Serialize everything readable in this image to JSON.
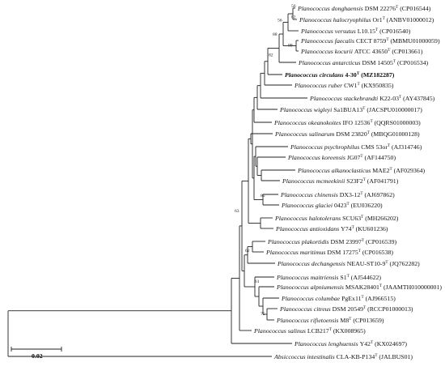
{
  "tree": {
    "leaves": [
      {
        "species": "Planococcus donghaensis",
        "strain": "DSM 22276",
        "superscript": "T",
        "accession": "(CP016544)"
      },
      {
        "species": "Planococcus halocryophilus",
        "strain": "Or1",
        "superscript": "T",
        "accession": "(ANBV01000012)"
      },
      {
        "species": "Planococcus versutus",
        "strain": "L10.15",
        "superscript": "T",
        "accession": "(CP016540)"
      },
      {
        "species": "Planococcus faecalis",
        "strain": "CECT 8759",
        "superscript": "T",
        "accession": "(MBMU01000059)"
      },
      {
        "species": "Planococcus kocurii",
        "strain": "ATCC 43650",
        "superscript": "T",
        "accession": "(CP013661)"
      },
      {
        "species": "Planococcus antarcticus",
        "strain": "DSM 14505",
        "superscript": "T",
        "accession": "(CP016534)"
      },
      {
        "species": "Planococcus circulans",
        "strain": "4-30",
        "superscript": "T",
        "accession": "(MZ182287)",
        "bold": true
      },
      {
        "species": "Planococcus ruber",
        "strain": "CW1",
        "superscript": "T",
        "accession": "(KX950835)"
      },
      {
        "species": "Planococcus stackebrandti",
        "strain": "K22-03",
        "superscript": "T",
        "accession": "(AY437845)"
      },
      {
        "species": "Planococcus wigleyi",
        "strain": "Sa1BUA13",
        "superscript": "T",
        "accession": "(JACSPU010000017)"
      },
      {
        "species": "Planococcus okeanokoites",
        "strain": "IFO 12536",
        "superscript": "T",
        "accession": "(QQRS01000003)"
      },
      {
        "species": "Planococcus salinarum",
        "strain": "DSM 23820",
        "superscript": "T",
        "accession": "(MBQG01000128)"
      },
      {
        "species": "Planococcus psychrophilus",
        "strain": "CMS 53or",
        "superscript": "T",
        "accession": "(AJ314746)"
      },
      {
        "species": "Planococcus koreensis",
        "strain": "JG07",
        "superscript": "T",
        "accession": "(AF144750)"
      },
      {
        "species": "Planococcus alkanoclasticus",
        "strain": "MAE2",
        "superscript": "T",
        "accession": "(AF029364)"
      },
      {
        "species": "Planococcus mcmeekinii",
        "strain": "S23F2",
        "superscript": "T",
        "accession": "(AF041791)"
      },
      {
        "species": "Planococcus chinensis",
        "strain": "DX3-12",
        "superscript": "T",
        "accession": "(AJ697862)"
      },
      {
        "species": "Planococcus glaciei",
        "strain": "0423",
        "superscript": "T",
        "accession": "(EU036220)"
      },
      {
        "species": "Planococcus halotolerans",
        "strain": "SCU63",
        "superscript": "T",
        "accession": "(MH266202)"
      },
      {
        "species": "Planococcus antioxidans",
        "strain": "Y74",
        "superscript": "T",
        "accession": "(KU601236)"
      },
      {
        "species": "Planococcus plakortidis",
        "strain": "DSM 23997",
        "superscript": "T",
        "accession": "(CP016539)"
      },
      {
        "species": "Planococcus maritimus",
        "strain": "DSM 17275",
        "superscript": "T",
        "accession": "(CP016538)"
      },
      {
        "species": "Planococcus dechangensis",
        "strain": "NEAU-ST10-9",
        "superscript": "T",
        "accession": "(JQ762282)"
      },
      {
        "species": "Planococcus maitriensis",
        "strain": "S1",
        "superscript": "T",
        "accession": "(AJ544622)"
      },
      {
        "species": "Planococcus alpniumensis",
        "strain": "MSAK28401",
        "superscript": "T",
        "accession": "(JAAMTH010000001)"
      },
      {
        "species": "Planococcus columbae",
        "strain": "PgEx11",
        "superscript": "T",
        "accession": "(AJ966515)"
      },
      {
        "species": "Planococcus citreus",
        "strain": "DSM 20549",
        "superscript": "T",
        "accession": "(RCCP01000013)"
      },
      {
        "species": "Planococcus rifietoensis",
        "strain": "M8",
        "superscript": "T",
        "accession": "(CP013659)"
      },
      {
        "species": "Planococcus salinus",
        "strain": "LCB217",
        "superscript": "T",
        "accession": "(KX008965)"
      },
      {
        "species": "Planococcus lenghuensis",
        "strain": "Y42",
        "superscript": "T",
        "accession": "(KX024697)"
      },
      {
        "species": "Absiccoccus intestinalis",
        "strain": "CLA-KB-P134",
        "superscript": "T",
        "accession": "(JALBUS01)"
      }
    ],
    "bootstrap_values": [
      "56",
      "82",
      "56",
      "99",
      "88",
      "82",
      "63",
      "62",
      "61",
      "75",
      "85"
    ],
    "scale_bar": {
      "label": "0.02",
      "value": 0.02
    }
  }
}
